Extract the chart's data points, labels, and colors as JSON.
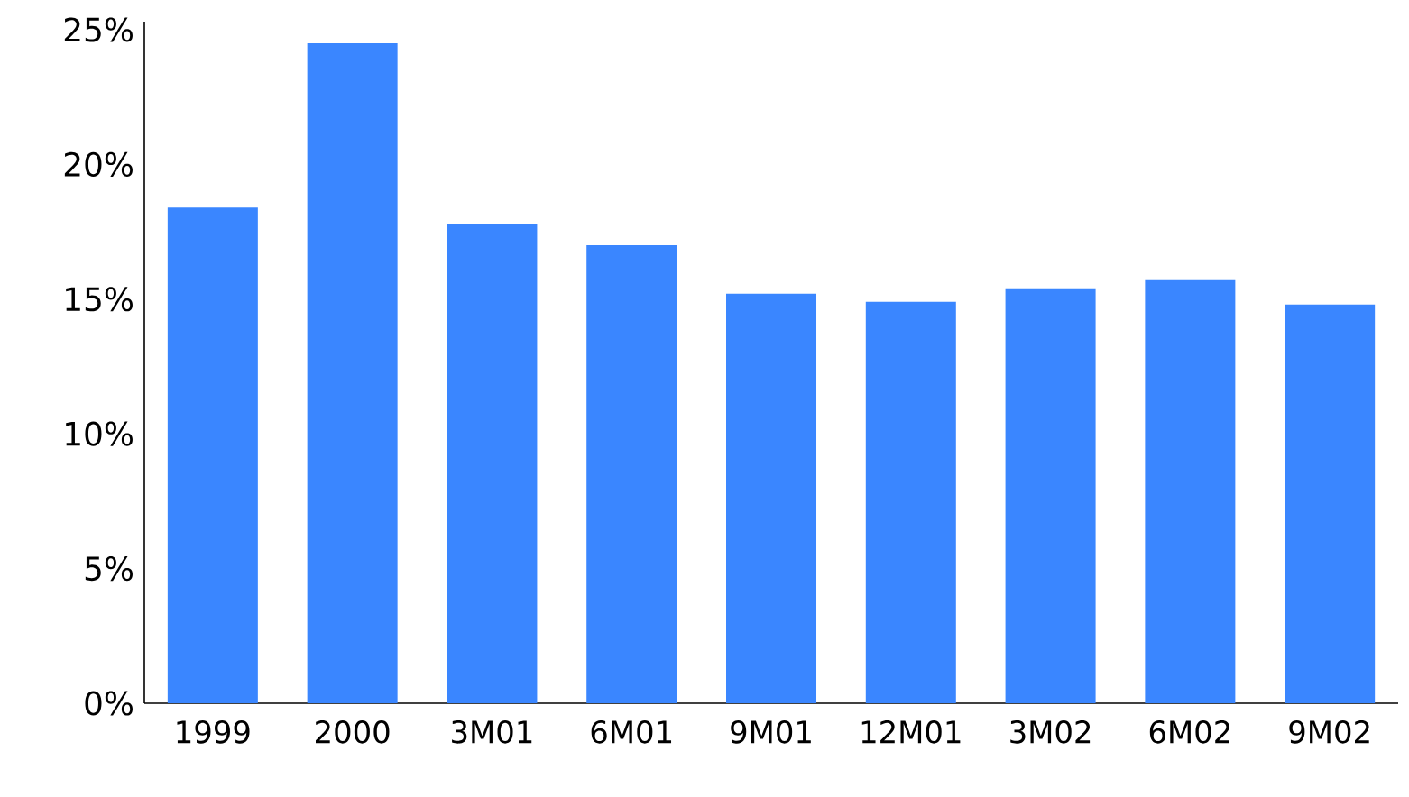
{
  "chart_data": {
    "type": "bar",
    "categories": [
      "1999",
      "2000",
      "3M01",
      "6M01",
      "9M01",
      "12M01",
      "3M02",
      "6M02",
      "9M02"
    ],
    "values": [
      18.4,
      24.5,
      17.8,
      17.0,
      15.2,
      14.9,
      15.4,
      15.7,
      14.8
    ],
    "color": "#3a86ff",
    "ylim": [
      0,
      25.3
    ],
    "yticks": [
      {
        "value": 0,
        "label": "0%"
      },
      {
        "value": 5,
        "label": "5%"
      },
      {
        "value": 10,
        "label": "10%"
      },
      {
        "value": 15,
        "label": "15%"
      },
      {
        "value": 20,
        "label": "20%"
      },
      {
        "value": 25,
        "label": "25%"
      }
    ]
  }
}
